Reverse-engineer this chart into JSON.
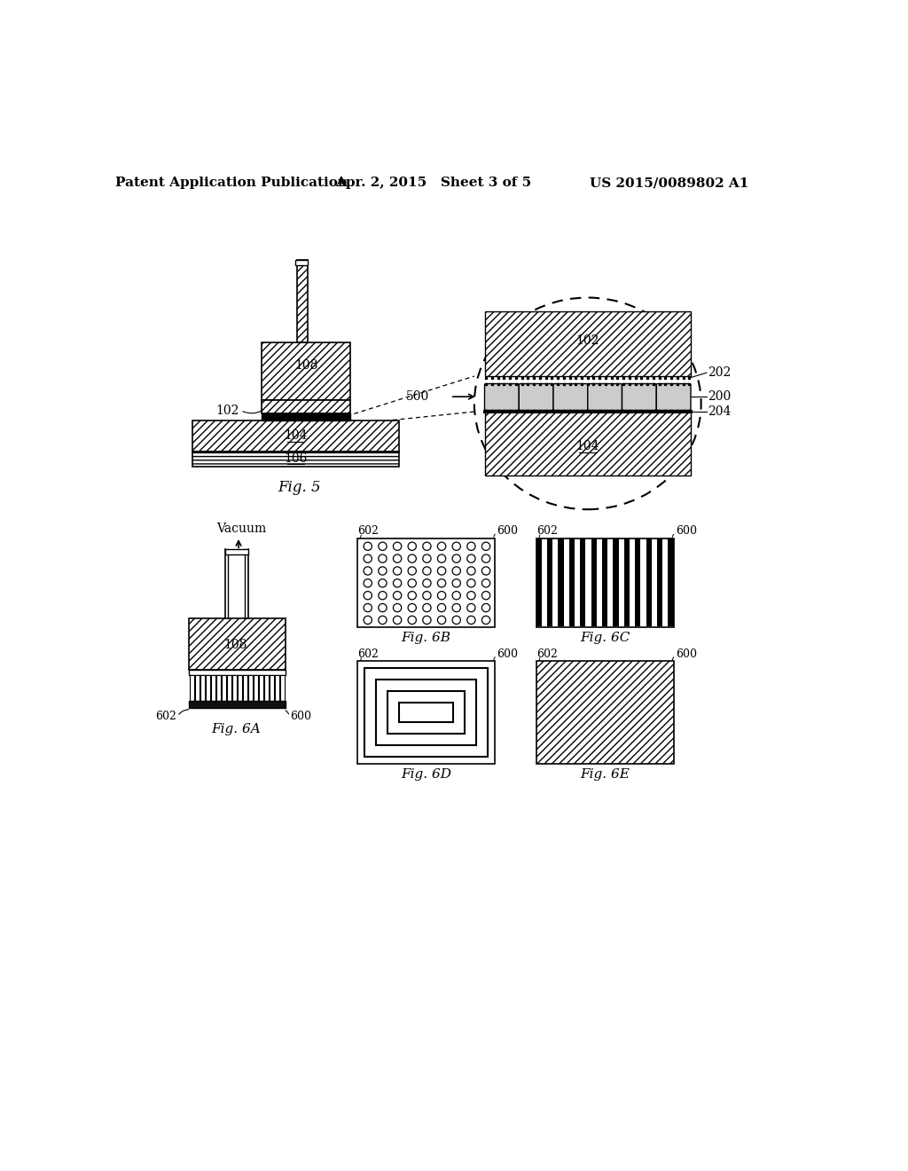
{
  "bg_color": "#ffffff",
  "header_left": "Patent Application Publication",
  "header_center": "Apr. 2, 2015   Sheet 3 of 5",
  "header_right": "US 2015/0089802 A1",
  "fig5_caption": "Fig. 5",
  "fig6a_caption": "Fig. 6A",
  "fig6b_caption": "Fig. 6B",
  "fig6c_caption": "Fig. 6C",
  "fig6d_caption": "Fig. 6D",
  "fig6e_caption": "Fig. 6E"
}
